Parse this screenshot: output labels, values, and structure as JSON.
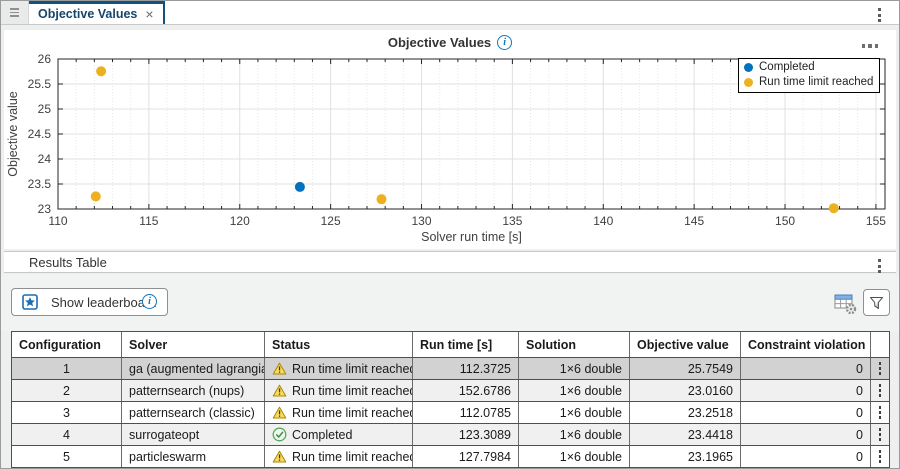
{
  "tabbar": {
    "tab_label": "Objective Values",
    "close_label": "×"
  },
  "chart": {
    "title": "Objective Values"
  },
  "chart_data": {
    "type": "scatter",
    "title": "Objective Values",
    "xlabel": "Solver run time [s]",
    "ylabel": "Objective value",
    "xlim": [
      110,
      155.5
    ],
    "ylim": [
      23,
      26
    ],
    "xticks": [
      110,
      115,
      120,
      125,
      130,
      135,
      140,
      145,
      150,
      155
    ],
    "yticks": [
      23,
      23.5,
      24,
      24.5,
      25,
      25.5,
      26
    ],
    "x_minor_step": 1,
    "grid": true,
    "legend_position": "top-right",
    "series": [
      {
        "name": "Completed",
        "color": "#0072BD",
        "points": [
          {
            "x": 123.3089,
            "y": 23.4418
          }
        ]
      },
      {
        "name": "Run time limit reached",
        "color": "#EDB120",
        "points": [
          {
            "x": 112.3725,
            "y": 25.7549
          },
          {
            "x": 152.6786,
            "y": 23.016
          },
          {
            "x": 112.0785,
            "y": 23.2518
          },
          {
            "x": 127.7984,
            "y": 23.1965
          }
        ]
      }
    ]
  },
  "results_section": {
    "title": "Results Table",
    "leaderboard_button": "Show leaderboard"
  },
  "results_table": {
    "columns": [
      "Configuration",
      "Solver",
      "Status",
      "Run time [s]",
      "Solution",
      "Objective value",
      "Constraint violation"
    ],
    "rows": [
      {
        "configuration": "1",
        "solver": "ga (augmented lagrangian)",
        "status": "Run time limit reached",
        "status_type": "warning",
        "run_time": "112.3725",
        "solution": "1×6 double",
        "objective": "25.7549",
        "constraint": "0",
        "selected": true
      },
      {
        "configuration": "2",
        "solver": "patternsearch (nups)",
        "status": "Run time limit reached",
        "status_type": "warning",
        "run_time": "152.6786",
        "solution": "1×6 double",
        "objective": "23.0160",
        "constraint": "0",
        "selected": false
      },
      {
        "configuration": "3",
        "solver": "patternsearch (classic)",
        "status": "Run time limit reached",
        "status_type": "warning",
        "run_time": "112.0785",
        "solution": "1×6 double",
        "objective": "23.2518",
        "constraint": "0",
        "selected": false
      },
      {
        "configuration": "4",
        "solver": "surrogateopt",
        "status": "Completed",
        "status_type": "completed",
        "run_time": "123.3089",
        "solution": "1×6 double",
        "objective": "23.4418",
        "constraint": "0",
        "selected": false
      },
      {
        "configuration": "5",
        "solver": "particleswarm",
        "status": "Run time limit reached",
        "status_type": "warning",
        "run_time": "127.7984",
        "solution": "1×6 double",
        "objective": "23.1965",
        "constraint": "0",
        "selected": false
      }
    ]
  },
  "icons": {
    "panel-grip": "≡",
    "tab-close": "×",
    "kebab-menu": "⋮",
    "more-options": "⋯",
    "info": "i",
    "leaderboard-star": "★",
    "table-settings": "table-with-gear",
    "filter": "funnel",
    "status-warning": "⚠",
    "status-completed": "✓"
  },
  "colors": {
    "completed_marker": "#0072BD",
    "limit_marker": "#EDB120",
    "tab_accent": "#11527f",
    "info_blue": "#1274bc",
    "selected_row": "#d2d2d2",
    "stripe_row": "#f0f0f0"
  }
}
